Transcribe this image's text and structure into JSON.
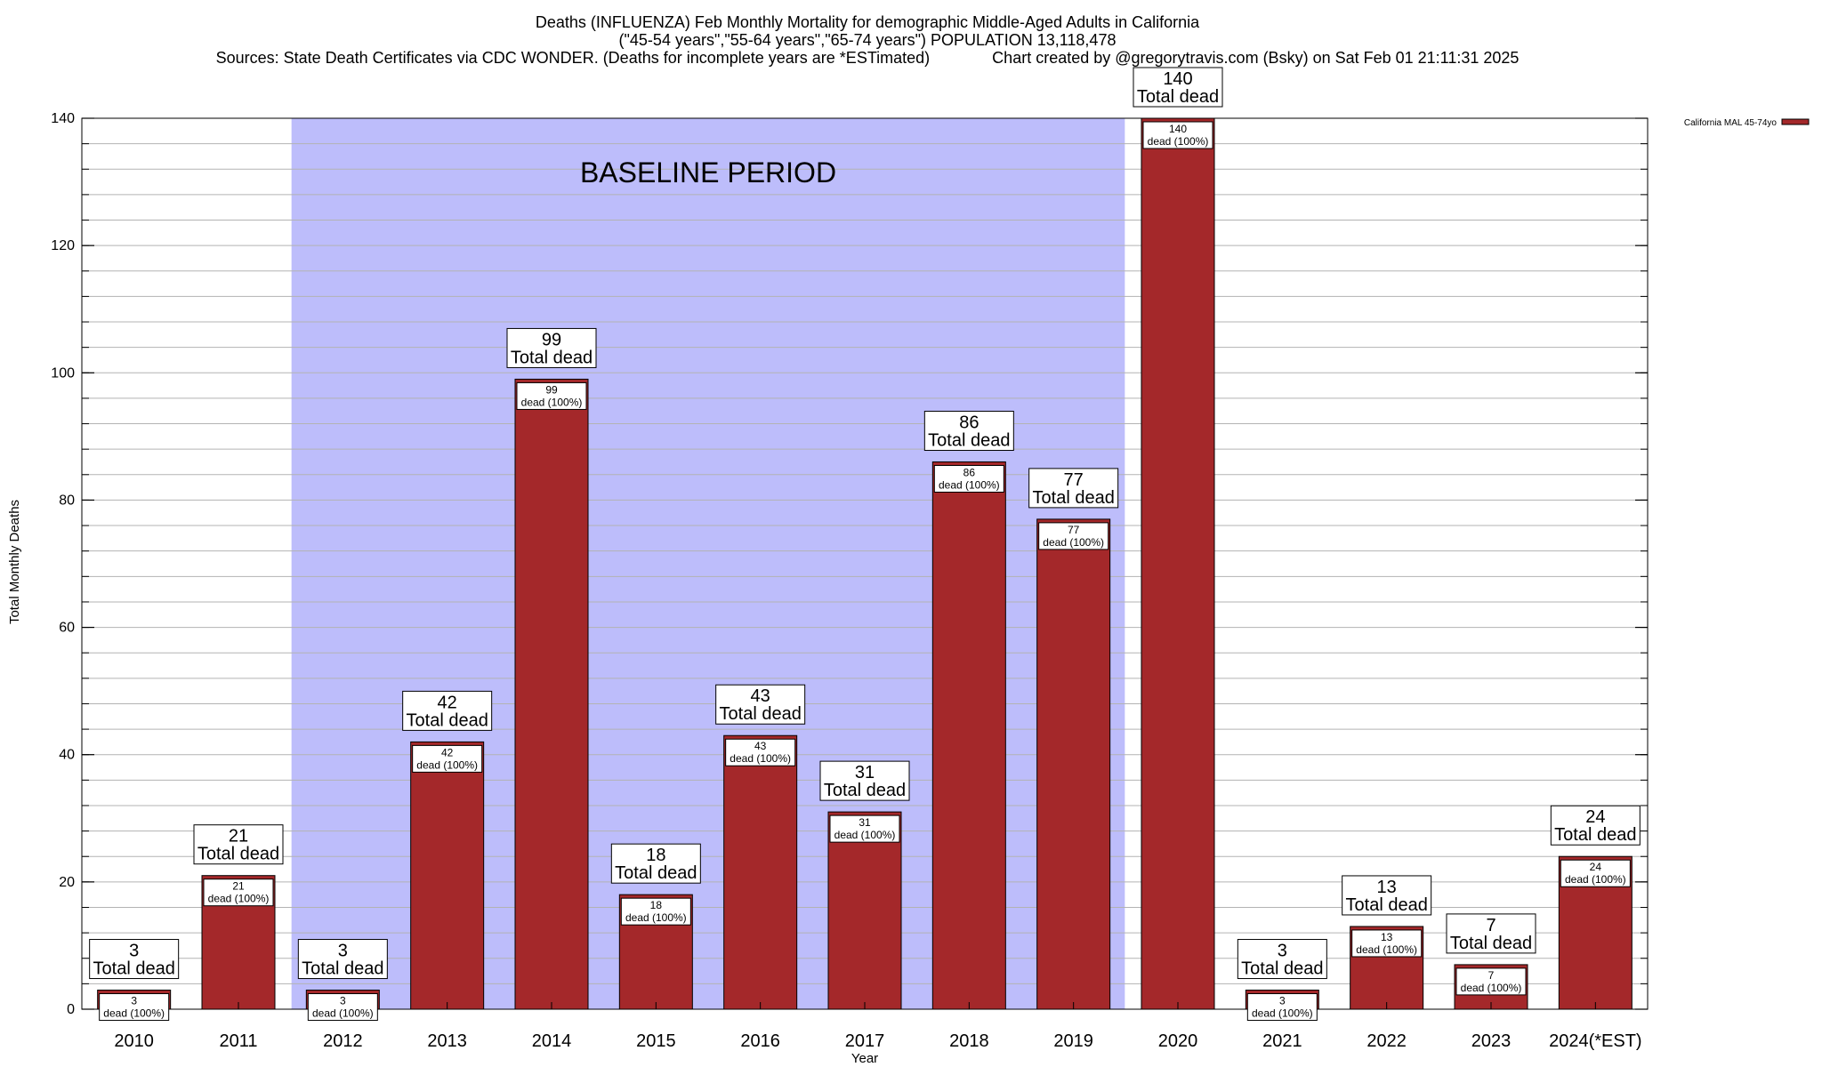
{
  "chart_data": {
    "type": "bar",
    "title": [
      "Deaths (INFLUENZA) Feb Monthly Mortality for demographic Middle-Aged Adults in California",
      "(\"45-54 years\",\"55-64 years\",\"65-74 years\") POPULATION 13,118,478",
      "Sources: State Death Certificates via CDC WONDER. (Deaths for incomplete years are *ESTimated)              Chart created by @gregorytravis.com (Bsky) on Sat Feb 01 21:11:31 2025"
    ],
    "xlabel": "Year",
    "ylabel": "Total Monthly Deaths",
    "ylim": [
      0,
      140
    ],
    "yticks": [
      0,
      20,
      40,
      60,
      80,
      100,
      120,
      140
    ],
    "y_minor_step": 4,
    "categories": [
      "2010",
      "2011",
      "2012",
      "2013",
      "2014",
      "2015",
      "2016",
      "2017",
      "2018",
      "2019",
      "2020",
      "2021",
      "2022",
      "2023",
      "2024(*EST)"
    ],
    "series": [
      {
        "name": "California MAL 45-74yo",
        "color": "#a4282a",
        "values": [
          3,
          21,
          3,
          42,
          99,
          18,
          43,
          31,
          86,
          77,
          140,
          3,
          13,
          7,
          24
        ]
      }
    ],
    "bar_label_total": "Total dead",
    "bar_label_inner": "dead (100%)",
    "baseline": {
      "label": "BASELINE PERIOD",
      "from_category": "2012",
      "to_category": "2019",
      "color": "#bdbdfb"
    },
    "legend": {
      "position": "top-right",
      "entries": [
        "California MAL 45-74yo"
      ]
    },
    "grid": true
  }
}
